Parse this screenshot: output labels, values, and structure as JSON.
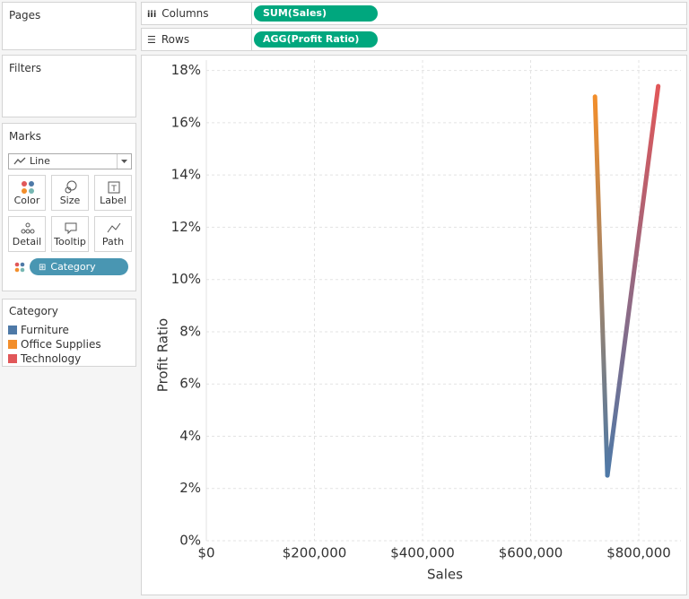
{
  "shelves": {
    "pages": "Pages",
    "columns": {
      "label": "Columns",
      "pill": "SUM(Sales)"
    },
    "rows": {
      "label": "Rows",
      "pill": "AGG(Profit Ratio)"
    }
  },
  "filters": "Filters",
  "marks": {
    "title": "Marks",
    "type": "Line",
    "buttons": [
      "Color",
      "Size",
      "Label",
      "Detail",
      "Tooltip",
      "Path"
    ],
    "pill": "Category"
  },
  "chart_data": {
    "type": "line",
    "x_label": "Sales",
    "y_label": "Profit Ratio",
    "legend_title": "Category",
    "series": [
      {
        "name": "Furniture",
        "color": "#4e79a7",
        "x": [
          742000
        ],
        "values": [
          2.5
        ]
      },
      {
        "name": "Office Supplies",
        "color": "#f28e2b",
        "x": [
          719000
        ],
        "values": [
          17.0
        ]
      },
      {
        "name": "Technology",
        "color": "#e15759",
        "x": [
          836000
        ],
        "values": [
          17.4
        ]
      }
    ],
    "xlim": [
      0,
      878000
    ],
    "xticks": [
      {
        "value": 0,
        "label": "$0"
      },
      {
        "value": 200000,
        "label": "$200,000"
      },
      {
        "value": 400000,
        "label": "$400,000"
      },
      {
        "value": 600000,
        "label": "$600,000"
      },
      {
        "value": 800000,
        "label": "$800,000"
      }
    ],
    "ylim": [
      0,
      18.4
    ],
    "yticks": [
      {
        "value": 0,
        "label": "0%"
      },
      {
        "value": 2,
        "label": "2%"
      },
      {
        "value": 4,
        "label": "4%"
      },
      {
        "value": 6,
        "label": "6%"
      },
      {
        "value": 8,
        "label": "8%"
      },
      {
        "value": 10,
        "label": "10%"
      },
      {
        "value": 12,
        "label": "12%"
      },
      {
        "value": 14,
        "label": "14%"
      },
      {
        "value": 16,
        "label": "16%"
      },
      {
        "value": 18,
        "label": "18%"
      }
    ],
    "grid": true
  }
}
